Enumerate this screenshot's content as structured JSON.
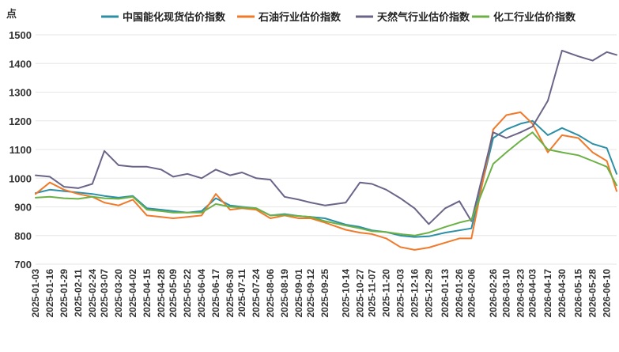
{
  "chart_data": {
    "type": "line",
    "title": "",
    "xlabel": "",
    "ylabel": "点",
    "ylim": [
      700,
      1500
    ],
    "yticks": [
      700,
      800,
      900,
      1000,
      1100,
      1200,
      1300,
      1400,
      1500
    ],
    "legend_position": "top",
    "grid": true,
    "x_tick_labels": [
      "2025-01-03",
      "2025-01-16",
      "2025-01-29",
      "2025-02-11",
      "2025-02-24",
      "2025-03-07",
      "2025-03-20",
      "2025-04-02",
      "2025-04-15",
      "2025-04-28",
      "2025-05-09",
      "2025-05-22",
      "2025-06-04",
      "2025-06-17",
      "2025-06-30",
      "2025-07-11",
      "2025-07-24",
      "2025-08-06",
      "2025-08-19",
      "2025-09-01",
      "2025-09-12",
      "2025-09-25",
      "2025-10-14",
      "2025-10-27",
      "2025-11-07",
      "2025-11-20",
      "2025-12-03",
      "2025-12-16",
      "2025-12-29",
      "2026-01-13",
      "2026-01-26",
      "2026-02-06",
      "2026-02-26",
      "2026-03-10",
      "2026-03-23",
      "2026-04-03",
      "2026-04-17",
      "2026-04-30",
      "2026-05-15",
      "2026-05-28",
      "2026-06-10"
    ],
    "x": [
      "2025-01-03",
      "2025-01-16",
      "2025-01-29",
      "2025-02-11",
      "2025-02-24",
      "2025-03-07",
      "2025-03-20",
      "2025-04-02",
      "2025-04-15",
      "2025-04-28",
      "2025-05-09",
      "2025-05-22",
      "2025-06-04",
      "2025-06-17",
      "2025-06-30",
      "2025-07-11",
      "2025-07-24",
      "2025-08-06",
      "2025-08-19",
      "2025-09-01",
      "2025-09-12",
      "2025-09-25",
      "2025-10-14",
      "2025-10-27",
      "2025-11-07",
      "2025-11-20",
      "2025-12-03",
      "2025-12-16",
      "2025-12-29",
      "2026-01-13",
      "2026-01-26",
      "2026-02-06",
      "2026-02-26",
      "2026-03-10",
      "2026-03-23",
      "2026-04-03",
      "2026-04-17",
      "2026-04-30",
      "2026-05-15",
      "2026-05-28",
      "2026-06-10",
      "2026-06-19"
    ],
    "series": [
      {
        "name": "中国能化现货估价指数",
        "color": "#2b8fa6",
        "values": [
          948,
          960,
          955,
          950,
          945,
          938,
          932,
          938,
          895,
          890,
          885,
          880,
          885,
          930,
          905,
          900,
          895,
          870,
          875,
          868,
          865,
          860,
          838,
          830,
          818,
          812,
          800,
          795,
          797,
          810,
          818,
          825,
          1140,
          1170,
          1190,
          1200,
          1150,
          1175,
          1150,
          1120,
          1105,
          1015
        ]
      },
      {
        "name": "石油行业估价指数",
        "color": "#f07a2a",
        "values": [
          945,
          985,
          960,
          945,
          935,
          915,
          905,
          925,
          870,
          865,
          860,
          865,
          870,
          945,
          890,
          895,
          890,
          860,
          870,
          860,
          860,
          845,
          820,
          810,
          805,
          790,
          760,
          750,
          758,
          775,
          790,
          790,
          1170,
          1220,
          1230,
          1190,
          1090,
          1150,
          1140,
          1090,
          1060,
          955
        ]
      },
      {
        "name": "天然气行业估价指数",
        "color": "#6b6488",
        "values": [
          1010,
          1005,
          970,
          965,
          980,
          1095,
          1045,
          1040,
          1040,
          1030,
          1005,
          1015,
          1000,
          1030,
          1010,
          1020,
          1000,
          995,
          935,
          925,
          915,
          905,
          915,
          985,
          980,
          960,
          930,
          895,
          840,
          895,
          920,
          850,
          1160,
          1140,
          1160,
          1180,
          1270,
          1445,
          1425,
          1410,
          1440,
          1430
        ]
      },
      {
        "name": "化工行业估价指数",
        "color": "#6cb145",
        "values": [
          932,
          935,
          930,
          928,
          935,
          930,
          928,
          935,
          890,
          885,
          880,
          880,
          880,
          910,
          900,
          898,
          895,
          870,
          872,
          868,
          865,
          850,
          835,
          825,
          815,
          812,
          805,
          800,
          810,
          830,
          845,
          855,
          1050,
          1090,
          1130,
          1160,
          1100,
          1090,
          1080,
          1060,
          1040,
          975
        ]
      }
    ]
  }
}
